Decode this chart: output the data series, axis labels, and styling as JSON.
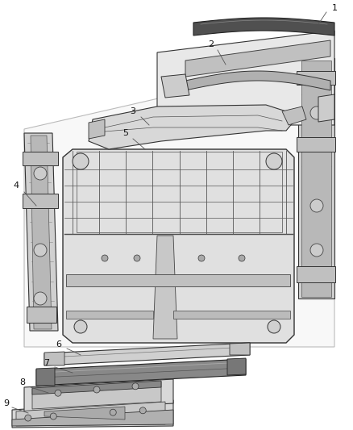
{
  "background_color": "#ffffff",
  "line_color": "#222222",
  "fig_width": 4.38,
  "fig_height": 5.33,
  "skew": 0.35
}
